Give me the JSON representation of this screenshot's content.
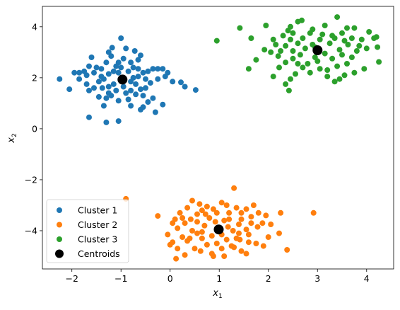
{
  "chart_data": {
    "type": "scatter",
    "title": "",
    "xlabel": "x",
    "xlabel_sub": "1",
    "ylabel": "x",
    "ylabel_sub": "2",
    "xlim": [
      -2.6,
      4.55
    ],
    "ylim": [
      -5.5,
      4.8
    ],
    "xticks": [
      {
        "value": -2,
        "label": "−2"
      },
      {
        "value": -1,
        "label": "−1"
      },
      {
        "value": 0,
        "label": "0"
      },
      {
        "value": 1,
        "label": "1"
      },
      {
        "value": 2,
        "label": "2"
      },
      {
        "value": 3,
        "label": "3"
      },
      {
        "value": 4,
        "label": "4"
      }
    ],
    "yticks": [
      {
        "value": -4,
        "label": "−4"
      },
      {
        "value": -2,
        "label": "−2"
      },
      {
        "value": 0,
        "label": "0"
      },
      {
        "value": 2,
        "label": "2"
      },
      {
        "value": 4,
        "label": "4"
      }
    ],
    "grid": false,
    "legend_position": "lower-left",
    "series": [
      {
        "name": "Cluster 1",
        "color": "#1f77b4",
        "points": [
          [
            -1.0,
            3.55
          ],
          [
            -1.18,
            3.18
          ],
          [
            -1.25,
            3.0
          ],
          [
            -1.2,
            2.85
          ],
          [
            -0.9,
            3.15
          ],
          [
            -0.72,
            3.05
          ],
          [
            -0.6,
            2.88
          ],
          [
            -0.65,
            2.7
          ],
          [
            -0.8,
            2.6
          ],
          [
            -0.95,
            2.75
          ],
          [
            -1.05,
            2.6
          ],
          [
            -1.3,
            2.6
          ],
          [
            -1.1,
            2.45
          ],
          [
            -1.4,
            2.35
          ],
          [
            -1.5,
            2.4
          ],
          [
            -1.6,
            2.8
          ],
          [
            -1.65,
            2.45
          ],
          [
            -1.75,
            2.25
          ],
          [
            -1.85,
            2.2
          ],
          [
            -1.95,
            2.2
          ],
          [
            -2.25,
            1.95
          ],
          [
            -2.05,
            1.55
          ],
          [
            -1.85,
            1.95
          ],
          [
            -1.7,
            1.75
          ],
          [
            -1.65,
            1.5
          ],
          [
            -1.55,
            1.6
          ],
          [
            -1.45,
            1.85
          ],
          [
            -1.38,
            1.6
          ],
          [
            -1.35,
            1.95
          ],
          [
            -1.25,
            2.15
          ],
          [
            -1.15,
            2.25
          ],
          [
            -1.05,
            2.2
          ],
          [
            -0.85,
            2.25
          ],
          [
            -0.75,
            2.4
          ],
          [
            -0.65,
            2.35
          ],
          [
            -0.55,
            2.2
          ],
          [
            -0.45,
            2.25
          ],
          [
            -0.35,
            2.35
          ],
          [
            -0.25,
            2.35
          ],
          [
            -0.15,
            2.35
          ],
          [
            -0.05,
            2.2
          ],
          [
            -0.1,
            2.05
          ],
          [
            0.05,
            1.85
          ],
          [
            0.22,
            1.82
          ],
          [
            0.3,
            1.65
          ],
          [
            0.52,
            1.52
          ],
          [
            -0.25,
            1.95
          ],
          [
            -0.4,
            1.8
          ],
          [
            -0.5,
            1.6
          ],
          [
            -0.6,
            1.55
          ],
          [
            -0.7,
            1.75
          ],
          [
            -0.8,
            1.5
          ],
          [
            -0.9,
            1.4
          ],
          [
            -0.95,
            1.65
          ],
          [
            -1.1,
            1.5
          ],
          [
            -1.2,
            1.3
          ],
          [
            -1.3,
            1.2
          ],
          [
            -1.45,
            1.25
          ],
          [
            -1.25,
            1.4
          ],
          [
            -1.15,
            1.75
          ],
          [
            -1.05,
            1.1
          ],
          [
            -0.85,
            1.15
          ],
          [
            -0.7,
            1.35
          ],
          [
            -0.55,
            1.3
          ],
          [
            -0.45,
            1.05
          ],
          [
            -0.35,
            1.2
          ],
          [
            -0.55,
            0.85
          ],
          [
            -0.8,
            0.9
          ],
          [
            -1.35,
            0.9
          ],
          [
            -1.05,
            0.3
          ],
          [
            -1.3,
            0.25
          ],
          [
            -1.65,
            0.45
          ],
          [
            -0.15,
            0.95
          ],
          [
            -0.3,
            0.65
          ],
          [
            -0.6,
            0.75
          ],
          [
            -0.5,
            1.95
          ],
          [
            -0.65,
            2.05
          ],
          [
            -1.4,
            2.05
          ],
          [
            -1.55,
            2.2
          ],
          [
            -1.7,
            2.1
          ],
          [
            -1.25,
            1.65
          ],
          [
            -0.95,
            1.95
          ],
          [
            -0.8,
            1.85
          ],
          [
            -1.0,
            2.4
          ],
          [
            -0.75,
            2.0
          ]
        ]
      },
      {
        "name": "Cluster 2",
        "color": "#ff7f0e",
        "points": [
          [
            -0.9,
            -2.75
          ],
          [
            -0.25,
            -3.42
          ],
          [
            1.3,
            -2.33
          ],
          [
            2.92,
            -3.3
          ],
          [
            2.38,
            -4.75
          ],
          [
            0.45,
            -2.82
          ],
          [
            0.6,
            -2.95
          ],
          [
            0.75,
            -3.05
          ],
          [
            0.35,
            -3.1
          ],
          [
            0.65,
            -3.2
          ],
          [
            0.88,
            -3.15
          ],
          [
            0.95,
            -3.3
          ],
          [
            1.05,
            -2.9
          ],
          [
            1.15,
            -3.0
          ],
          [
            1.2,
            -3.3
          ],
          [
            1.35,
            -3.1
          ],
          [
            1.45,
            -3.3
          ],
          [
            1.55,
            -3.15
          ],
          [
            1.7,
            -3.0
          ],
          [
            1.8,
            -3.3
          ],
          [
            1.95,
            -3.4
          ],
          [
            2.05,
            -3.75
          ],
          [
            2.25,
            -3.3
          ],
          [
            2.22,
            -4.1
          ],
          [
            2.0,
            -4.25
          ],
          [
            1.9,
            -4.6
          ],
          [
            1.75,
            -4.5
          ],
          [
            1.6,
            -4.45
          ],
          [
            1.45,
            -4.8
          ],
          [
            1.35,
            -4.3
          ],
          [
            1.25,
            -4.6
          ],
          [
            1.15,
            -4.35
          ],
          [
            1.05,
            -4.7
          ],
          [
            0.95,
            -4.5
          ],
          [
            0.85,
            -4.9
          ],
          [
            0.75,
            -4.55
          ],
          [
            0.65,
            -4.3
          ],
          [
            0.55,
            -4.1
          ],
          [
            0.45,
            -4.0
          ],
          [
            0.35,
            -4.4
          ],
          [
            0.25,
            -4.25
          ],
          [
            0.15,
            -4.7
          ],
          [
            0.05,
            -4.45
          ],
          [
            -0.05,
            -4.15
          ],
          [
            0.15,
            -3.9
          ],
          [
            0.3,
            -3.7
          ],
          [
            0.25,
            -3.5
          ],
          [
            0.1,
            -3.55
          ],
          [
            0.05,
            -3.7
          ],
          [
            0.42,
            -3.55
          ],
          [
            0.55,
            -3.65
          ],
          [
            0.7,
            -3.8
          ],
          [
            0.8,
            -3.5
          ],
          [
            0.92,
            -3.65
          ],
          [
            1.1,
            -3.6
          ],
          [
            1.18,
            -3.85
          ],
          [
            1.28,
            -4.0
          ],
          [
            1.4,
            -3.75
          ],
          [
            1.55,
            -3.95
          ],
          [
            1.65,
            -3.7
          ],
          [
            1.78,
            -3.85
          ],
          [
            1.88,
            -3.7
          ],
          [
            1.6,
            -4.15
          ],
          [
            1.4,
            -4.1
          ],
          [
            1.05,
            -4.15
          ],
          [
            0.85,
            -4.2
          ],
          [
            0.65,
            -4.05
          ],
          [
            0.5,
            -4.7
          ],
          [
            0.3,
            -4.95
          ],
          [
            0.12,
            -5.1
          ],
          [
            0.0,
            -4.55
          ],
          [
            0.62,
            -4.8
          ],
          [
            0.88,
            -5.0
          ],
          [
            1.55,
            -4.9
          ],
          [
            1.1,
            -5.0
          ],
          [
            1.3,
            -4.65
          ],
          [
            0.4,
            -4.3
          ],
          [
            0.2,
            -3.3
          ],
          [
            1.45,
            -3.55
          ],
          [
            1.65,
            -3.45
          ],
          [
            1.2,
            -3.55
          ],
          [
            0.72,
            -3.35
          ],
          [
            0.98,
            -3.95
          ],
          [
            1.42,
            -4.35
          ],
          [
            0.55,
            -3.35
          ]
        ]
      },
      {
        "name": "Cluster 3",
        "color": "#2ca02c",
        "points": [
          [
            3.4,
            4.38
          ],
          [
            2.68,
            4.25
          ],
          [
            2.6,
            4.2
          ],
          [
            1.95,
            4.05
          ],
          [
            1.42,
            3.95
          ],
          [
            2.45,
            4.0
          ],
          [
            3.6,
            3.95
          ],
          [
            3.75,
            3.95
          ],
          [
            4.05,
            3.8
          ],
          [
            4.2,
            3.6
          ],
          [
            0.95,
            3.45
          ],
          [
            1.65,
            3.55
          ],
          [
            2.3,
            3.65
          ],
          [
            2.5,
            3.75
          ],
          [
            2.85,
            3.75
          ],
          [
            3.1,
            3.7
          ],
          [
            3.3,
            3.65
          ],
          [
            3.5,
            3.75
          ],
          [
            3.7,
            3.55
          ],
          [
            3.9,
            3.5
          ],
          [
            4.15,
            3.55
          ],
          [
            4.22,
            3.2
          ],
          [
            4.0,
            3.15
          ],
          [
            3.85,
            3.25
          ],
          [
            3.62,
            3.3
          ],
          [
            3.45,
            3.1
          ],
          [
            3.25,
            3.35
          ],
          [
            3.05,
            3.5
          ],
          [
            2.9,
            3.3
          ],
          [
            2.75,
            3.15
          ],
          [
            2.6,
            3.35
          ],
          [
            2.45,
            3.5
          ],
          [
            2.35,
            3.25
          ],
          [
            2.25,
            3.05
          ],
          [
            2.15,
            3.3
          ],
          [
            2.05,
            3.0
          ],
          [
            1.92,
            3.1
          ],
          [
            1.75,
            2.7
          ],
          [
            1.6,
            2.35
          ],
          [
            2.2,
            2.85
          ],
          [
            2.35,
            2.6
          ],
          [
            2.5,
            2.75
          ],
          [
            2.65,
            2.9
          ],
          [
            2.8,
            2.55
          ],
          [
            2.95,
            2.8
          ],
          [
            3.15,
            2.95
          ],
          [
            3.3,
            2.75
          ],
          [
            3.5,
            2.9
          ],
          [
            3.7,
            2.8
          ],
          [
            3.95,
            2.35
          ],
          [
            4.25,
            2.62
          ],
          [
            3.6,
            2.55
          ],
          [
            3.4,
            2.45
          ],
          [
            3.2,
            2.3
          ],
          [
            3.05,
            2.35
          ],
          [
            2.85,
            2.2
          ],
          [
            2.7,
            2.4
          ],
          [
            2.55,
            2.15
          ],
          [
            2.45,
            1.95
          ],
          [
            2.35,
            1.75
          ],
          [
            2.42,
            1.5
          ],
          [
            2.1,
            2.05
          ],
          [
            2.22,
            2.4
          ],
          [
            3.2,
            2.05
          ],
          [
            3.35,
            1.85
          ],
          [
            3.45,
            1.95
          ],
          [
            3.55,
            2.1
          ],
          [
            3.75,
            2.2
          ],
          [
            2.6,
            2.55
          ],
          [
            3.0,
            2.65
          ],
          [
            2.7,
            3.55
          ],
          [
            2.9,
            3.9
          ],
          [
            3.15,
            4.05
          ],
          [
            3.8,
            3.05
          ],
          [
            2.5,
            3.05
          ],
          [
            2.4,
            3.85
          ],
          [
            3.55,
            3.45
          ],
          [
            2.95,
            3.2
          ],
          [
            3.35,
            3.55
          ],
          [
            2.1,
            3.5
          ]
        ]
      }
    ],
    "centroids": {
      "name": "Centroids",
      "color": "#000000",
      "points": [
        [
          -0.97,
          1.93
        ],
        [
          0.99,
          -3.95
        ],
        [
          3.0,
          3.08
        ]
      ]
    }
  }
}
